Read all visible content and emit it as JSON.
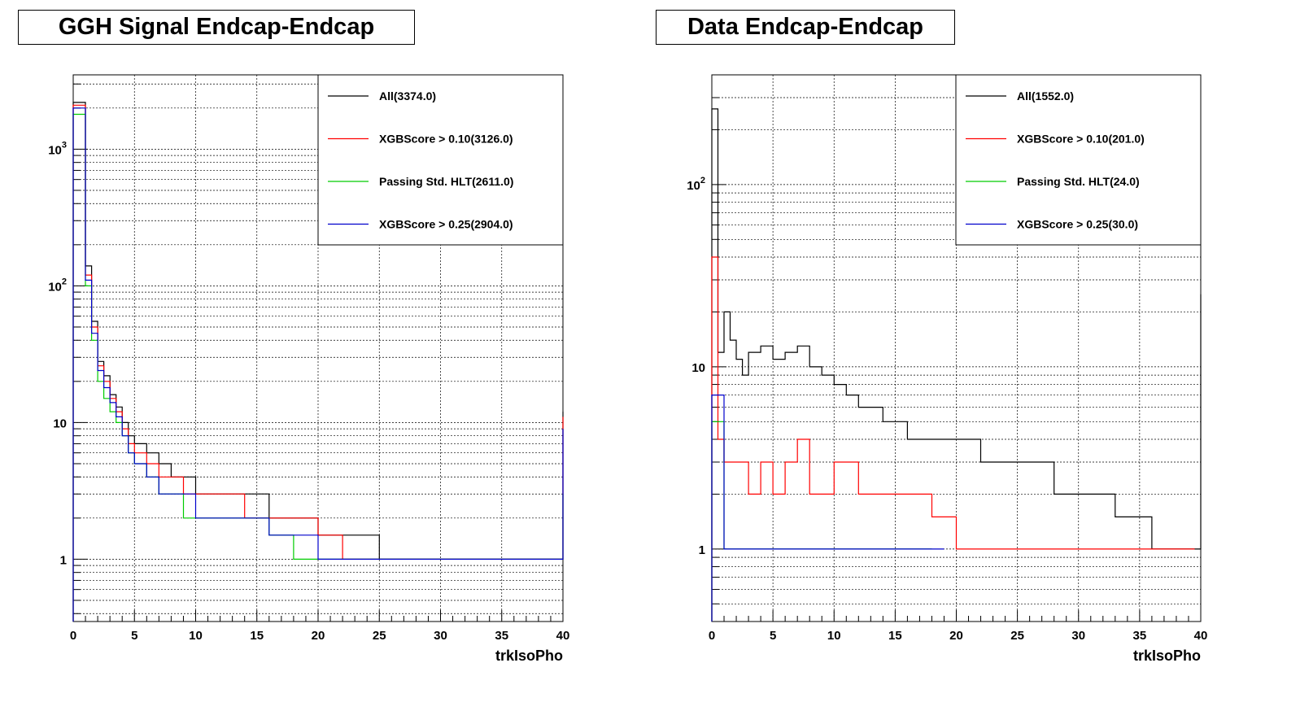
{
  "chart_data": [
    {
      "type": "line",
      "title": "GGH Signal Endcap-Endcap",
      "xlabel": "trkIsoPho",
      "ylabel": "",
      "xlim": [
        0,
        40
      ],
      "ylim": [
        0.35,
        3500
      ],
      "y_scale": "log",
      "grid": true,
      "legend_position": "top-right",
      "x_ticks": [
        "0",
        "5",
        "10",
        "15",
        "20",
        "25",
        "30",
        "35",
        "40"
      ],
      "y_ticks": [
        {
          "value": 1,
          "base": "1",
          "exp": ""
        },
        {
          "value": 10,
          "base": "10",
          "exp": ""
        },
        {
          "value": 100,
          "base": "10",
          "exp": "2"
        },
        {
          "value": 1000,
          "base": "10",
          "exp": "3"
        }
      ],
      "series": [
        {
          "name": "All(3374.0)",
          "color": "#000000",
          "x": [
            0,
            1,
            1.5,
            2,
            2.5,
            3,
            3.5,
            4,
            4.5,
            5,
            6,
            7,
            8,
            9,
            10,
            12,
            14,
            16,
            18,
            20,
            22,
            25,
            30,
            35,
            39.5,
            40
          ],
          "y": [
            2200,
            140,
            55,
            28,
            22,
            16,
            13,
            10,
            8,
            7,
            6,
            5,
            4,
            4,
            3,
            3,
            3,
            2,
            2,
            1.5,
            1.5,
            1,
            1,
            1,
            1,
            12
          ]
        },
        {
          "name": "XGBScore > 0.10(3126.0)",
          "color": "#ff0000",
          "x": [
            0,
            1,
            1.5,
            2,
            2.5,
            3,
            3.5,
            4,
            4.5,
            5,
            6,
            7,
            8,
            9,
            10,
            12,
            14,
            16,
            18,
            20,
            22,
            25,
            30,
            35,
            39.5,
            40
          ],
          "y": [
            2100,
            120,
            50,
            26,
            20,
            15,
            12,
            9,
            7,
            6,
            5,
            4,
            4,
            3,
            3,
            3,
            2,
            2,
            2,
            1.5,
            1,
            1,
            1,
            1,
            1,
            11
          ]
        },
        {
          "name": "Passing Std. HLT(2611.0)",
          "color": "#00cc00",
          "x": [
            0,
            1,
            1.5,
            2,
            2.5,
            3,
            3.5,
            4,
            4.5,
            5,
            6,
            7,
            8,
            9,
            10,
            12,
            14,
            16,
            18,
            20,
            22,
            25,
            30,
            35,
            39.5,
            40
          ],
          "y": [
            1800,
            100,
            40,
            20,
            15,
            12,
            10,
            8,
            6,
            5,
            4,
            3,
            3,
            2,
            2,
            2,
            2,
            1.5,
            1,
            1,
            1,
            1,
            1,
            1,
            1,
            3
          ]
        },
        {
          "name": "XGBScore > 0.25(2904.0)",
          "color": "#0000cc",
          "x": [
            0,
            1,
            1.5,
            2,
            2.5,
            3,
            3.5,
            4,
            4.5,
            5,
            6,
            7,
            8,
            9,
            10,
            12,
            14,
            16,
            18,
            20,
            22,
            25,
            30,
            35,
            39.5,
            40
          ],
          "y": [
            2000,
            110,
            45,
            24,
            18,
            14,
            11,
            8,
            6,
            5,
            4,
            3,
            3,
            3,
            2,
            2,
            2,
            1.5,
            1.5,
            1,
            1,
            1,
            1,
            1,
            1,
            9
          ]
        }
      ]
    },
    {
      "type": "line",
      "title": "Data Endcap-Endcap",
      "xlabel": "trkIsoPho",
      "ylabel": "",
      "xlim": [
        0,
        40
      ],
      "ylim": [
        0.4,
        400
      ],
      "y_scale": "log",
      "grid": true,
      "legend_position": "top-right",
      "x_ticks": [
        "0",
        "5",
        "10",
        "15",
        "20",
        "25",
        "30",
        "35",
        "40"
      ],
      "y_ticks": [
        {
          "value": 1,
          "base": "1",
          "exp": ""
        },
        {
          "value": 10,
          "base": "10",
          "exp": ""
        },
        {
          "value": 100,
          "base": "10",
          "exp": "2"
        }
      ],
      "series": [
        {
          "name": "All(1552.0)",
          "color": "#000000",
          "x": [
            0,
            0.5,
            1,
            1.5,
            2,
            2.5,
            3,
            4,
            5,
            6,
            7,
            8,
            9,
            10,
            11,
            12,
            13,
            14,
            15,
            16,
            18,
            20,
            22,
            25,
            28,
            30,
            33,
            36,
            39.5,
            40
          ],
          "y": [
            260,
            12,
            20,
            14,
            11,
            9,
            12,
            13,
            11,
            12,
            13,
            10,
            9,
            8,
            7,
            6,
            6,
            5,
            5,
            4,
            4,
            4,
            3,
            3,
            2,
            2,
            1.5,
            1,
            1,
            25
          ]
        },
        {
          "name": "XGBScore > 0.10(201.0)",
          "color": "#ff0000",
          "x": [
            0,
            0.5,
            1,
            2,
            3,
            4,
            5,
            6,
            7,
            8,
            10,
            12,
            14,
            16,
            18,
            20,
            24,
            28,
            32,
            36,
            39.5
          ],
          "y": [
            40,
            4,
            3,
            3,
            2,
            3,
            2,
            3,
            4,
            2,
            3,
            2,
            2,
            2,
            1.5,
            1,
            1,
            1,
            1,
            1,
            1
          ]
        },
        {
          "name": "Passing Std. HLT(24.0)",
          "color": "#00cc00",
          "x": [
            0,
            1,
            2,
            3,
            4,
            5,
            6,
            7,
            8,
            10,
            11,
            12,
            13,
            16,
            18
          ],
          "y": [
            5,
            1,
            1,
            1,
            1,
            1,
            1,
            1,
            1,
            1,
            1,
            1,
            1,
            1,
            1
          ]
        },
        {
          "name": "XGBScore > 0.25(30.0)",
          "color": "#0000cc",
          "x": [
            0,
            1,
            2,
            3,
            4,
            5,
            6,
            7,
            8,
            9,
            10,
            12,
            14,
            16,
            19
          ],
          "y": [
            7,
            1,
            1,
            1,
            1,
            1,
            1,
            1,
            1,
            1,
            1,
            1,
            1,
            1,
            1
          ]
        }
      ]
    }
  ]
}
